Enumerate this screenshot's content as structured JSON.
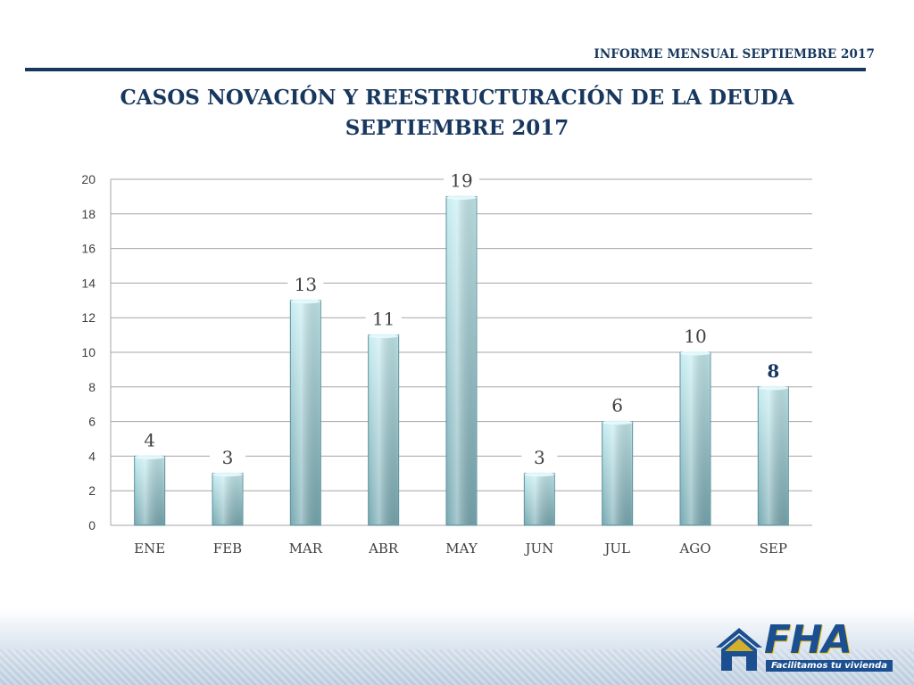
{
  "header": {
    "report_label": "INFORME MENSUAL SEPTIEMBRE 2017"
  },
  "title": {
    "line1": "CASOS NOVACIÓN Y REESTRUCTURACIÓN DE LA DEUDA",
    "line2": "SEPTIEMBRE 2017"
  },
  "chart_data": {
    "type": "bar",
    "categories": [
      "ENE",
      "FEB",
      "MAR",
      "ABR",
      "MAY",
      "JUN",
      "JUL",
      "AGO",
      "SEP"
    ],
    "values": [
      4,
      3,
      13,
      11,
      19,
      3,
      6,
      10,
      8
    ],
    "value_labels": [
      "4",
      "3",
      "13",
      "11",
      "19",
      "3",
      "6",
      "10",
      "8"
    ],
    "highlight_index": 8,
    "ylim": [
      0,
      20
    ],
    "yticks": [
      0,
      2,
      4,
      6,
      8,
      10,
      12,
      14,
      16,
      18,
      20
    ],
    "grid": true,
    "colors": {
      "bar_top": "#c8eef2",
      "bar_bottom": "#79abb3",
      "bar_edge": "#5f8f98",
      "grid": "#a6a6a6",
      "text": "#17375e"
    }
  },
  "logo": {
    "text": "FHA",
    "tagline": "Facilitamos tu vivienda"
  }
}
